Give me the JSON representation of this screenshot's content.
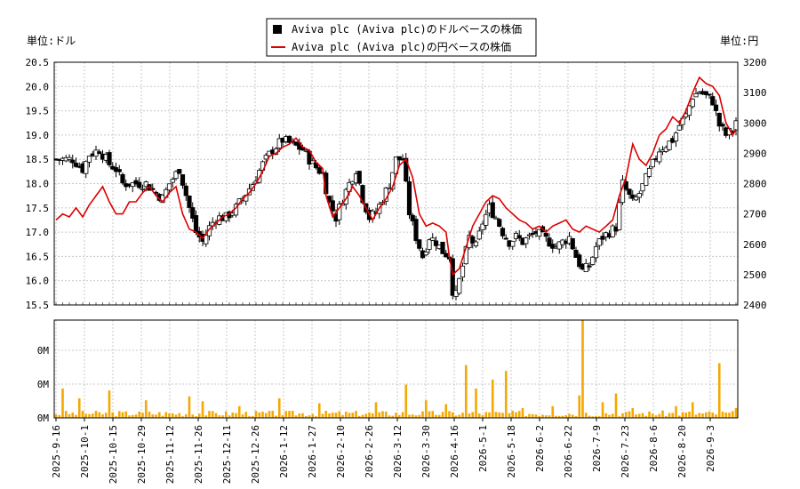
{
  "chart_data": {
    "type": "candlestick+line+volume",
    "legend": [
      {
        "name": "Aviva plc (Aviva plc)のドルベースの株価",
        "marker": "black-square",
        "color": "#000000"
      },
      {
        "name": "Aviva plc (Aviva plc)の円ベースの株価",
        "marker": "line",
        "color": "#dd0000"
      }
    ],
    "y_left_label": "単位:ドル",
    "y_right_label": "単位:円",
    "y_left": {
      "min": 15.5,
      "max": 20.5,
      "ticks": [
        "15.5",
        "16.0",
        "16.5",
        "17.0",
        "17.5",
        "18.0",
        "18.5",
        "19.0",
        "19.5",
        "20.0",
        "20.5"
      ]
    },
    "y_right": {
      "min": 2400,
      "max": 3200,
      "ticks": [
        "2400",
        "2500",
        "2600",
        "2700",
        "2800",
        "2900",
        "3000",
        "3100",
        "3200"
      ]
    },
    "volume_ticks": [
      "0M",
      "0M",
      "0M"
    ],
    "x_tick_labels": [
      "2025-9-16",
      "2025-10-1",
      "2025-10-15",
      "2025-10-29",
      "2025-11-12",
      "2025-11-26",
      "2025-12-11",
      "2025-12-26",
      "2026-1-12",
      "2026-1-27",
      "2026-2-10",
      "2026-2-26",
      "2026-3-12",
      "2026-3-30",
      "2026-4-16",
      "2026-5-1",
      "2026-5-18",
      "2026-6-2",
      "2026-6-22",
      "2026-7-9",
      "2026-7-23",
      "2026-8-6",
      "2026-8-20",
      "2026-9-3"
    ],
    "usd_close_anchors": [
      [
        0,
        18.5
      ],
      [
        5,
        18.5
      ],
      [
        8,
        18.3
      ],
      [
        10,
        18.6
      ],
      [
        13,
        18.7
      ],
      [
        16,
        18.4
      ],
      [
        18,
        18.3
      ],
      [
        20,
        18.0
      ],
      [
        24,
        18.0
      ],
      [
        27,
        18.0
      ],
      [
        30,
        17.8
      ],
      [
        32,
        17.7
      ],
      [
        34,
        18.0
      ],
      [
        37,
        18.3
      ],
      [
        40,
        17.5
      ],
      [
        42,
        17.0
      ],
      [
        44,
        16.8
      ],
      [
        46,
        17.1
      ],
      [
        48,
        17.3
      ],
      [
        51,
        17.3
      ],
      [
        54,
        17.5
      ],
      [
        57,
        17.8
      ],
      [
        59,
        18.0
      ],
      [
        62,
        18.4
      ],
      [
        65,
        18.7
      ],
      [
        68,
        18.9
      ],
      [
        71,
        18.8
      ],
      [
        74,
        18.7
      ],
      [
        77,
        18.4
      ],
      [
        80,
        18.2
      ],
      [
        82,
        17.6
      ],
      [
        84,
        17.3
      ],
      [
        86,
        17.7
      ],
      [
        88,
        18.0
      ],
      [
        90,
        18.3
      ],
      [
        92,
        17.7
      ],
      [
        94,
        17.3
      ],
      [
        96,
        17.4
      ],
      [
        98,
        17.7
      ],
      [
        100,
        18.0
      ],
      [
        102,
        18.5
      ],
      [
        104,
        18.5
      ],
      [
        106,
        17.4
      ],
      [
        108,
        16.9
      ],
      [
        110,
        16.5
      ],
      [
        112,
        16.9
      ],
      [
        114,
        16.8
      ],
      [
        116,
        16.6
      ],
      [
        118,
        16.5
      ],
      [
        119,
        15.8
      ],
      [
        120,
        15.7
      ],
      [
        122,
        16.3
      ],
      [
        124,
        16.9
      ],
      [
        126,
        16.7
      ],
      [
        128,
        17.2
      ],
      [
        130,
        17.5
      ],
      [
        132,
        17.3
      ],
      [
        134,
        17.0
      ],
      [
        136,
        16.8
      ],
      [
        138,
        16.9
      ],
      [
        140,
        16.8
      ],
      [
        142,
        16.9
      ],
      [
        144,
        17.0
      ],
      [
        146,
        16.9
      ],
      [
        148,
        16.8
      ],
      [
        150,
        16.7
      ],
      [
        152,
        16.8
      ],
      [
        154,
        16.9
      ],
      [
        156,
        16.5
      ],
      [
        158,
        16.2
      ],
      [
        160,
        16.3
      ],
      [
        162,
        16.7
      ],
      [
        164,
        16.9
      ],
      [
        166,
        17.0
      ],
      [
        168,
        17.1
      ],
      [
        170,
        18.0
      ],
      [
        173,
        17.6
      ],
      [
        175,
        17.8
      ],
      [
        177,
        18.1
      ],
      [
        179,
        18.4
      ],
      [
        181,
        18.7
      ],
      [
        183,
        18.8
      ],
      [
        185,
        18.9
      ],
      [
        187,
        19.2
      ],
      [
        189,
        19.4
      ],
      [
        191,
        19.8
      ],
      [
        193,
        19.9
      ],
      [
        195,
        19.8
      ],
      [
        197,
        19.7
      ],
      [
        199,
        19.2
      ],
      [
        201,
        19.0
      ],
      [
        203,
        19.1
      ],
      [
        204,
        19.3
      ]
    ],
    "jpy_anchors": [
      [
        0,
        2680
      ],
      [
        2,
        2700
      ],
      [
        4,
        2690
      ],
      [
        6,
        2720
      ],
      [
        8,
        2690
      ],
      [
        10,
        2730
      ],
      [
        12,
        2760
      ],
      [
        14,
        2790
      ],
      [
        16,
        2740
      ],
      [
        18,
        2700
      ],
      [
        20,
        2700
      ],
      [
        22,
        2740
      ],
      [
        24,
        2740
      ],
      [
        26,
        2770
      ],
      [
        28,
        2790
      ],
      [
        30,
        2760
      ],
      [
        32,
        2740
      ],
      [
        34,
        2770
      ],
      [
        36,
        2790
      ],
      [
        38,
        2700
      ],
      [
        40,
        2650
      ],
      [
        42,
        2640
      ],
      [
        44,
        2620
      ],
      [
        46,
        2650
      ],
      [
        48,
        2670
      ],
      [
        50,
        2690
      ],
      [
        52,
        2700
      ],
      [
        54,
        2720
      ],
      [
        56,
        2750
      ],
      [
        58,
        2770
      ],
      [
        60,
        2800
      ],
      [
        62,
        2840
      ],
      [
        64,
        2890
      ],
      [
        66,
        2900
      ],
      [
        68,
        2920
      ],
      [
        70,
        2930
      ],
      [
        72,
        2950
      ],
      [
        74,
        2920
      ],
      [
        76,
        2910
      ],
      [
        78,
        2870
      ],
      [
        80,
        2850
      ],
      [
        81,
        2760
      ],
      [
        83,
        2690
      ],
      [
        85,
        2720
      ],
      [
        87,
        2750
      ],
      [
        89,
        2790
      ],
      [
        91,
        2760
      ],
      [
        93,
        2720
      ],
      [
        95,
        2680
      ],
      [
        97,
        2720
      ],
      [
        99,
        2750
      ],
      [
        101,
        2790
      ],
      [
        103,
        2860
      ],
      [
        105,
        2880
      ],
      [
        107,
        2820
      ],
      [
        109,
        2700
      ],
      [
        111,
        2660
      ],
      [
        113,
        2670
      ],
      [
        115,
        2660
      ],
      [
        117,
        2640
      ],
      [
        118,
        2560
      ],
      [
        119,
        2500
      ],
      [
        121,
        2520
      ],
      [
        123,
        2590
      ],
      [
        125,
        2660
      ],
      [
        127,
        2700
      ],
      [
        129,
        2740
      ],
      [
        131,
        2760
      ],
      [
        133,
        2750
      ],
      [
        135,
        2720
      ],
      [
        137,
        2700
      ],
      [
        139,
        2680
      ],
      [
        141,
        2670
      ],
      [
        143,
        2650
      ],
      [
        145,
        2660
      ],
      [
        147,
        2640
      ],
      [
        149,
        2660
      ],
      [
        151,
        2670
      ],
      [
        153,
        2680
      ],
      [
        155,
        2650
      ],
      [
        157,
        2640
      ],
      [
        159,
        2660
      ],
      [
        161,
        2650
      ],
      [
        163,
        2640
      ],
      [
        165,
        2660
      ],
      [
        167,
        2680
      ],
      [
        169,
        2760
      ],
      [
        171,
        2820
      ],
      [
        173,
        2930
      ],
      [
        175,
        2880
      ],
      [
        177,
        2860
      ],
      [
        179,
        2900
      ],
      [
        181,
        2960
      ],
      [
        183,
        2980
      ],
      [
        185,
        3020
      ],
      [
        187,
        3000
      ],
      [
        189,
        3040
      ],
      [
        191,
        3100
      ],
      [
        193,
        3150
      ],
      [
        195,
        3130
      ],
      [
        197,
        3120
      ],
      [
        199,
        3090
      ],
      [
        201,
        3000
      ],
      [
        203,
        2960
      ],
      [
        204,
        2980
      ]
    ],
    "volume_spikes": [
      [
        2,
        0.3
      ],
      [
        7,
        0.2
      ],
      [
        16,
        0.28
      ],
      [
        27,
        0.18
      ],
      [
        40,
        0.22
      ],
      [
        44,
        0.17
      ],
      [
        55,
        0.12
      ],
      [
        67,
        0.2
      ],
      [
        79,
        0.15
      ],
      [
        96,
        0.16
      ],
      [
        105,
        0.34
      ],
      [
        111,
        0.18
      ],
      [
        117,
        0.14
      ],
      [
        123,
        0.54
      ],
      [
        126,
        0.3
      ],
      [
        131,
        0.39
      ],
      [
        135,
        0.48
      ],
      [
        140,
        0.1
      ],
      [
        149,
        0.12
      ],
      [
        157,
        0.23
      ],
      [
        158,
        1.0
      ],
      [
        164,
        0.16
      ],
      [
        168,
        0.25
      ],
      [
        173,
        0.1
      ],
      [
        186,
        0.12
      ],
      [
        191,
        0.16
      ],
      [
        199,
        0.56
      ],
      [
        204,
        0.1
      ]
    ]
  }
}
